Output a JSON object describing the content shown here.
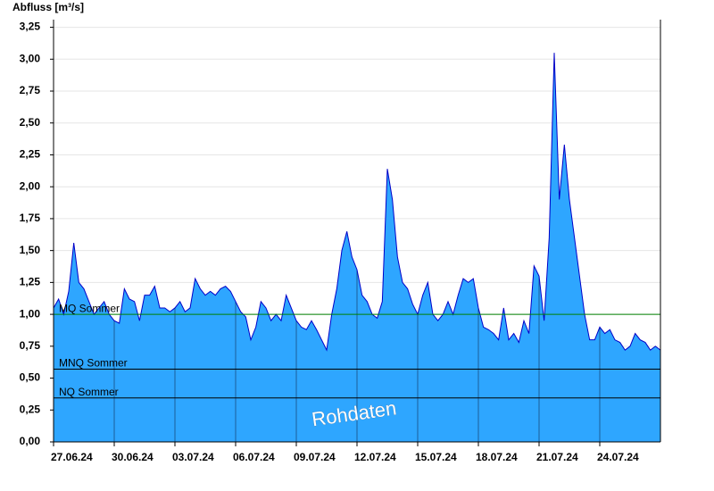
{
  "chart_data": {
    "type": "area",
    "y_label": "Abfluss [m³/s]",
    "annotation": "Rohdaten",
    "color": "#2ea6ff",
    "line_color": "#0000c8",
    "x": [
      0,
      0.25,
      0.5,
      0.75,
      1,
      1.25,
      1.5,
      1.75,
      2,
      2.25,
      2.5,
      2.75,
      3,
      3.25,
      3.5,
      3.75,
      4,
      4.25,
      4.5,
      4.75,
      5,
      5.25,
      5.5,
      5.75,
      6,
      6.25,
      6.5,
      6.75,
      7,
      7.25,
      7.5,
      7.75,
      8,
      8.25,
      8.5,
      8.75,
      9,
      9.25,
      9.5,
      9.75,
      10,
      10.25,
      10.5,
      10.75,
      11,
      11.25,
      11.5,
      11.75,
      12,
      12.25,
      12.5,
      12.75,
      13,
      13.25,
      13.5,
      13.75,
      14,
      14.25,
      14.5,
      14.75,
      15,
      15.25,
      15.5,
      15.75,
      16,
      16.25,
      16.5,
      16.75,
      17,
      17.25,
      17.5,
      17.75,
      18,
      18.25,
      18.5,
      18.75,
      19,
      19.25,
      19.5,
      19.75,
      20,
      20.25,
      20.5,
      20.75,
      21,
      21.25,
      21.5,
      21.75,
      22,
      22.25,
      22.5,
      22.75,
      23,
      23.25,
      23.5,
      23.75,
      24,
      24.25,
      24.5,
      24.75,
      25,
      25.25,
      25.5,
      25.75,
      26,
      26.25,
      26.5,
      26.75,
      27,
      27.25,
      27.5,
      27.75,
      28,
      28.25,
      28.5,
      28.75,
      29,
      29.25,
      29.5,
      29.75,
      30
    ],
    "values": [
      1.05,
      1.12,
      1.0,
      1.18,
      1.56,
      1.25,
      1.2,
      1.1,
      1.0,
      1.05,
      1.1,
      1.0,
      0.95,
      0.93,
      1.2,
      1.12,
      1.1,
      0.95,
      1.15,
      1.15,
      1.22,
      1.05,
      1.05,
      1.02,
      1.05,
      1.1,
      1.02,
      1.05,
      1.28,
      1.2,
      1.15,
      1.18,
      1.15,
      1.2,
      1.22,
      1.18,
      1.1,
      1.02,
      0.98,
      0.8,
      0.9,
      1.1,
      1.05,
      0.95,
      1.0,
      0.95,
      1.15,
      1.05,
      0.95,
      0.9,
      0.88,
      0.95,
      0.88,
      0.8,
      0.72,
      1.0,
      1.2,
      1.5,
      1.65,
      1.45,
      1.35,
      1.15,
      1.1,
      1.0,
      0.97,
      1.1,
      2.14,
      1.9,
      1.45,
      1.25,
      1.2,
      1.08,
      1.0,
      1.15,
      1.25,
      1.0,
      0.95,
      1.0,
      1.1,
      1.0,
      1.15,
      1.28,
      1.25,
      1.28,
      1.05,
      0.9,
      0.88,
      0.85,
      0.8,
      1.05,
      0.8,
      0.85,
      0.78,
      0.95,
      0.85,
      1.38,
      1.3,
      0.95,
      1.6,
      3.05,
      1.9,
      2.33,
      1.9,
      1.6,
      1.3,
      1.0,
      0.8,
      0.8,
      0.9,
      0.85,
      0.88,
      0.8,
      0.78,
      0.72,
      0.75,
      0.85,
      0.8,
      0.78,
      0.72,
      0.75,
      0.72
    ],
    "xlim": [
      0,
      30
    ],
    "xticks": [
      {
        "value": 0,
        "label": "27.06.24"
      },
      {
        "value": 3,
        "label": "30.06.24"
      },
      {
        "value": 6,
        "label": "03.07.24"
      },
      {
        "value": 9,
        "label": "06.07.24"
      },
      {
        "value": 12,
        "label": "09.07.24"
      },
      {
        "value": 15,
        "label": "12.07.24"
      },
      {
        "value": 18,
        "label": "15.07.24"
      },
      {
        "value": 21,
        "label": "18.07.24"
      },
      {
        "value": 24,
        "label": "21.07.24"
      },
      {
        "value": 27,
        "label": "24.07.24"
      }
    ],
    "ylim": [
      0,
      3.31
    ],
    "yticks": [
      {
        "value": 0,
        "label": "0,00"
      },
      {
        "value": 0.25,
        "label": "0,25"
      },
      {
        "value": 0.5,
        "label": "0,50"
      },
      {
        "value": 0.75,
        "label": "0,75"
      },
      {
        "value": 1,
        "label": "1,00"
      },
      {
        "value": 1.25,
        "label": "1,25"
      },
      {
        "value": 1.5,
        "label": "1,50"
      },
      {
        "value": 1.75,
        "label": "1,75"
      },
      {
        "value": 2,
        "label": "2,00"
      },
      {
        "value": 2.25,
        "label": "2,25"
      },
      {
        "value": 2.5,
        "label": "2,50"
      },
      {
        "value": 2.75,
        "label": "2,75"
      },
      {
        "value": 3,
        "label": "3,00"
      },
      {
        "value": 3.25,
        "label": "3,25"
      }
    ],
    "grid": true,
    "reference_lines": [
      {
        "name": "MQ Sommer",
        "value": 1.0,
        "color": "#008000"
      },
      {
        "name": "MNQ Sommer",
        "value": 0.57,
        "color": "#000000"
      },
      {
        "name": "NQ Sommer",
        "value": 0.345,
        "color": "#000000"
      }
    ]
  }
}
